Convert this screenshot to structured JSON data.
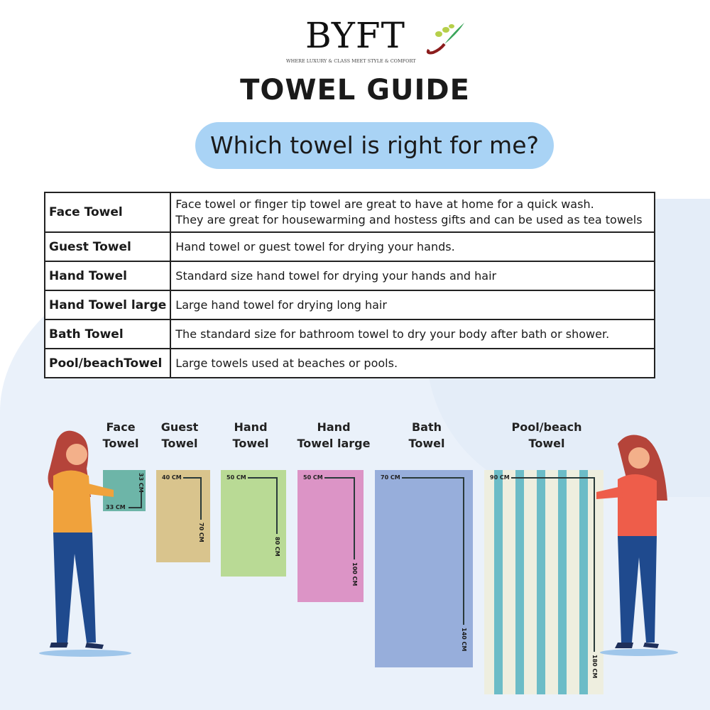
{
  "brand": {
    "name": "BYFT",
    "tagline": "WHERE LUXURY & CLASS MEET STYLE & COMFORT"
  },
  "title": "TOWEL GUIDE",
  "question": "Which towel is right for me?",
  "table": [
    {
      "name": "Face Towel",
      "desc": [
        "Face towel or finger tip towel are great to have at home for a quick wash.",
        "They are great for housewarming and hostess gifts and can be used as tea towels"
      ]
    },
    {
      "name": "Guest Towel",
      "desc": [
        "Hand towel or guest towel for drying your hands."
      ]
    },
    {
      "name": "Hand Towel",
      "desc": [
        "Standard size hand towel for drying your hands and hair"
      ]
    },
    {
      "name": "Hand Towel large",
      "desc": [
        "Large hand towel for drying long hair"
      ]
    },
    {
      "name": "Bath Towel",
      "desc": [
        "The standard size for bathroom towel to dry your body after bath or shower."
      ]
    },
    {
      "name": "Pool/beachTowel",
      "desc": [
        "Large towels used at beaches or pools."
      ]
    }
  ],
  "towels": [
    {
      "label1": "Face",
      "label2": "Towel",
      "width": "33 CM",
      "height": "33 CM",
      "color": "#6db5a8"
    },
    {
      "label1": "Guest",
      "label2": "Towel",
      "width": "40 CM",
      "height": "70 CM",
      "color": "#d9c48d"
    },
    {
      "label1": "Hand",
      "label2": "Towel",
      "width": "50 CM",
      "height": "80 CM",
      "color": "#b9da95"
    },
    {
      "label1": "Hand",
      "label2": "Towel large",
      "width": "50 CM",
      "height": "100 CM",
      "color": "#dc94c6"
    },
    {
      "label1": "Bath",
      "label2": "Towel",
      "width": "70 CM",
      "height": "140 CM",
      "color": "#97aedb"
    },
    {
      "label1": "Pool/beach",
      "label2": "Towel",
      "width": "90 CM",
      "height": "180 CM",
      "color": "#eeeedf",
      "stripe_color": "#6cbcc7"
    }
  ]
}
